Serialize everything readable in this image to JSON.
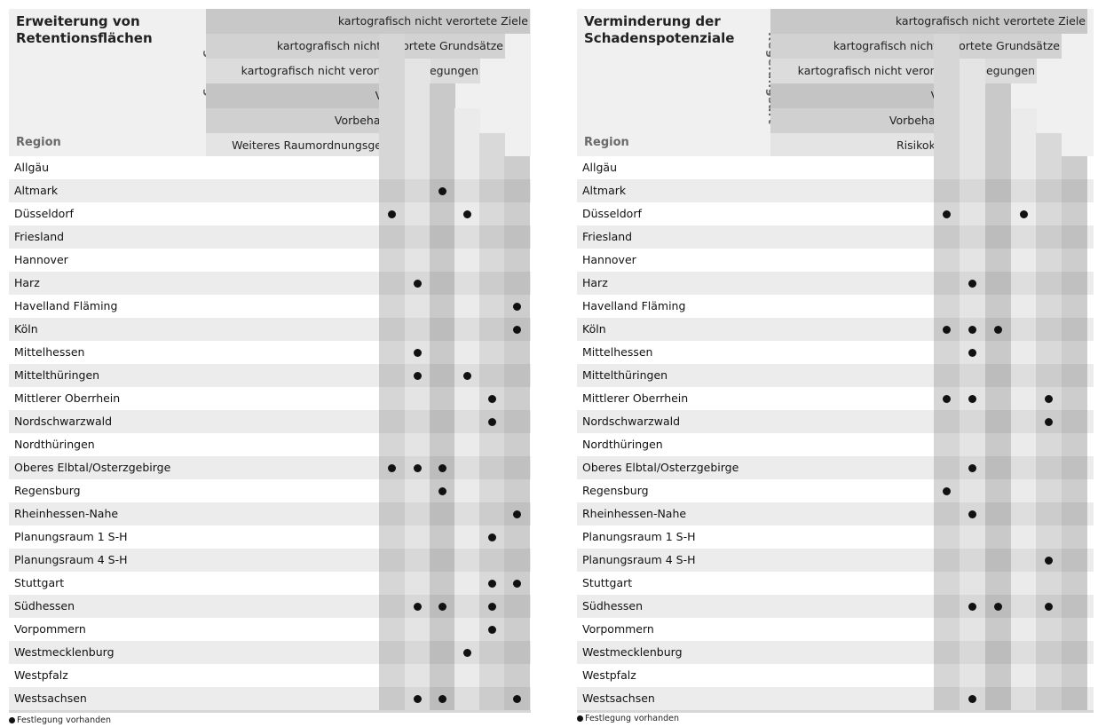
{
  "legend_text": "Festlegung vorhanden",
  "panels": [
    {
      "title_line1": "Erweiterung von",
      "title_line2": "Retentionsflächen",
      "region_label": "Region",
      "regelungsart_label": "Regelungsart",
      "levels": [
        "kartografisch nicht verortete Ziele",
        "kartografisch nicht verortete Grundsätze",
        "kartografisch nicht verortete Festlegungen",
        "Vorranggebiet",
        "Vorbehaltsgebiet",
        "Weiteres Raumordnungsgebiet"
      ],
      "rows": [
        {
          "region": "Allgäu",
          "marks": [
            0,
            0,
            0,
            0,
            0,
            0
          ]
        },
        {
          "region": "Altmark",
          "marks": [
            0,
            0,
            1,
            0,
            0,
            0
          ]
        },
        {
          "region": "Düsseldorf",
          "marks": [
            1,
            0,
            0,
            1,
            0,
            0
          ]
        },
        {
          "region": "Friesland",
          "marks": [
            0,
            0,
            0,
            0,
            0,
            0
          ]
        },
        {
          "region": "Hannover",
          "marks": [
            0,
            0,
            0,
            0,
            0,
            0
          ]
        },
        {
          "region": "Harz",
          "marks": [
            0,
            1,
            0,
            0,
            0,
            0
          ]
        },
        {
          "region": "Havelland Fläming",
          "marks": [
            0,
            0,
            0,
            0,
            0,
            1
          ]
        },
        {
          "region": "Köln",
          "marks": [
            0,
            0,
            0,
            0,
            0,
            1
          ]
        },
        {
          "region": "Mittelhessen",
          "marks": [
            0,
            1,
            0,
            0,
            0,
            0
          ]
        },
        {
          "region": "Mittelthüringen",
          "marks": [
            0,
            1,
            0,
            1,
            0,
            0
          ]
        },
        {
          "region": "Mittlerer Oberrhein",
          "marks": [
            0,
            0,
            0,
            0,
            1,
            0
          ]
        },
        {
          "region": "Nordschwarzwald",
          "marks": [
            0,
            0,
            0,
            0,
            1,
            0
          ]
        },
        {
          "region": "Nordthüringen",
          "marks": [
            0,
            0,
            0,
            0,
            0,
            0
          ]
        },
        {
          "region": "Oberes Elbtal/Osterzgebirge",
          "marks": [
            1,
            1,
            1,
            0,
            0,
            0
          ]
        },
        {
          "region": "Regensburg",
          "marks": [
            0,
            0,
            1,
            0,
            0,
            0
          ]
        },
        {
          "region": "Rheinhessen-Nahe",
          "marks": [
            0,
            0,
            0,
            0,
            0,
            1
          ]
        },
        {
          "region": "Planungsraum 1 S-H",
          "marks": [
            0,
            0,
            0,
            0,
            1,
            0
          ]
        },
        {
          "region": "Planungsraum 4 S-H",
          "marks": [
            0,
            0,
            0,
            0,
            0,
            0
          ]
        },
        {
          "region": "Stuttgart",
          "marks": [
            0,
            0,
            0,
            0,
            1,
            1
          ]
        },
        {
          "region": "Südhessen",
          "marks": [
            0,
            1,
            1,
            0,
            1,
            0
          ]
        },
        {
          "region": "Vorpommern",
          "marks": [
            0,
            0,
            0,
            0,
            1,
            0
          ]
        },
        {
          "region": "Westmecklenburg",
          "marks": [
            0,
            0,
            0,
            1,
            0,
            0
          ]
        },
        {
          "region": "Westpfalz",
          "marks": [
            0,
            0,
            0,
            0,
            0,
            0
          ]
        },
        {
          "region": "Westsachsen",
          "marks": [
            0,
            1,
            1,
            0,
            0,
            1
          ]
        }
      ]
    },
    {
      "title_line1": "Verminderung der",
      "title_line2": "Schadenspotenziale",
      "region_label": "Region",
      "regelungsart_label": "Regelungsart",
      "levels": [
        "kartografisch nicht verortete Ziele",
        "kartografisch nicht verortete Grundsätze",
        "kartografisch nicht verortete Festlegungen",
        "Vorranggebiet",
        "Vorbehaltsgebiet",
        "Risikokarte"
      ],
      "rows": [
        {
          "region": "Allgäu",
          "marks": [
            0,
            0,
            0,
            0,
            0,
            0
          ]
        },
        {
          "region": "Altmark",
          "marks": [
            0,
            0,
            0,
            0,
            0,
            0
          ]
        },
        {
          "region": "Düsseldorf",
          "marks": [
            1,
            0,
            0,
            1,
            0,
            0
          ]
        },
        {
          "region": "Friesland",
          "marks": [
            0,
            0,
            0,
            0,
            0,
            0
          ]
        },
        {
          "region": "Hannover",
          "marks": [
            0,
            0,
            0,
            0,
            0,
            0
          ]
        },
        {
          "region": "Harz",
          "marks": [
            0,
            1,
            0,
            0,
            0,
            0
          ]
        },
        {
          "region": "Havelland Fläming",
          "marks": [
            0,
            0,
            0,
            0,
            0,
            0
          ]
        },
        {
          "region": "Köln",
          "marks": [
            1,
            1,
            1,
            0,
            0,
            0
          ]
        },
        {
          "region": "Mittelhessen",
          "marks": [
            0,
            1,
            0,
            0,
            0,
            0
          ]
        },
        {
          "region": "Mittelthüringen",
          "marks": [
            0,
            0,
            0,
            0,
            0,
            0
          ]
        },
        {
          "region": "Mittlerer Oberrhein",
          "marks": [
            1,
            1,
            0,
            0,
            1,
            0
          ]
        },
        {
          "region": "Nordschwarzwald",
          "marks": [
            0,
            0,
            0,
            0,
            1,
            0
          ]
        },
        {
          "region": "Nordthüringen",
          "marks": [
            0,
            0,
            0,
            0,
            0,
            0
          ]
        },
        {
          "region": "Oberes Elbtal/Osterzgebirge",
          "marks": [
            0,
            1,
            0,
            0,
            0,
            0
          ]
        },
        {
          "region": "Regensburg",
          "marks": [
            1,
            0,
            0,
            0,
            0,
            0
          ]
        },
        {
          "region": "Rheinhessen-Nahe",
          "marks": [
            0,
            1,
            0,
            0,
            0,
            0
          ]
        },
        {
          "region": "Planungsraum 1 S-H",
          "marks": [
            0,
            0,
            0,
            0,
            0,
            0
          ]
        },
        {
          "region": "Planungsraum 4 S-H",
          "marks": [
            0,
            0,
            0,
            0,
            1,
            0
          ]
        },
        {
          "region": "Stuttgart",
          "marks": [
            0,
            0,
            0,
            0,
            0,
            0
          ]
        },
        {
          "region": "Südhessen",
          "marks": [
            0,
            1,
            1,
            0,
            1,
            0
          ]
        },
        {
          "region": "Vorpommern",
          "marks": [
            0,
            0,
            0,
            0,
            0,
            0
          ]
        },
        {
          "region": "Westmecklenburg",
          "marks": [
            0,
            0,
            0,
            0,
            0,
            0
          ]
        },
        {
          "region": "Westpfalz",
          "marks": [
            0,
            0,
            0,
            0,
            0,
            0
          ]
        },
        {
          "region": "Westsachsen",
          "marks": [
            0,
            1,
            0,
            0,
            0,
            0
          ]
        }
      ]
    }
  ]
}
